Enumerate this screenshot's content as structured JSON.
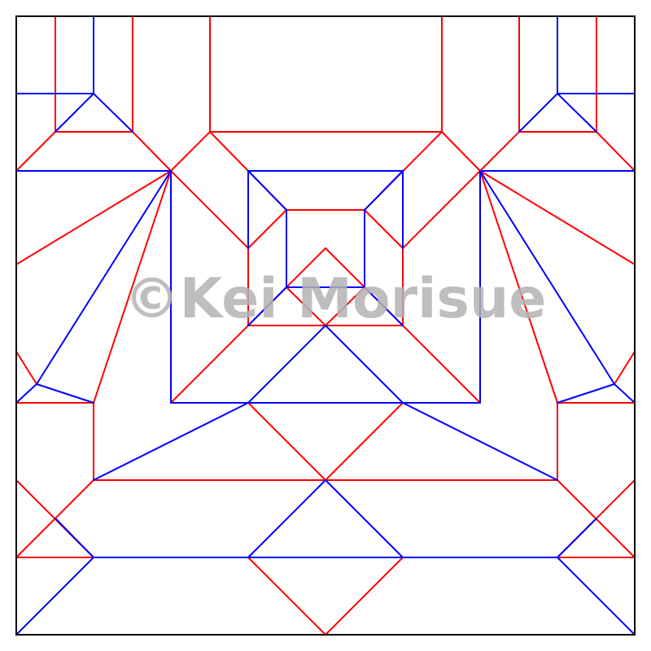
{
  "diagram": {
    "type": "origami-crease-pattern",
    "colors": {
      "border": "#000000",
      "mountain": "#ff0000",
      "valley": "#0000ff"
    },
    "watermark": "©Kei Morisue"
  }
}
